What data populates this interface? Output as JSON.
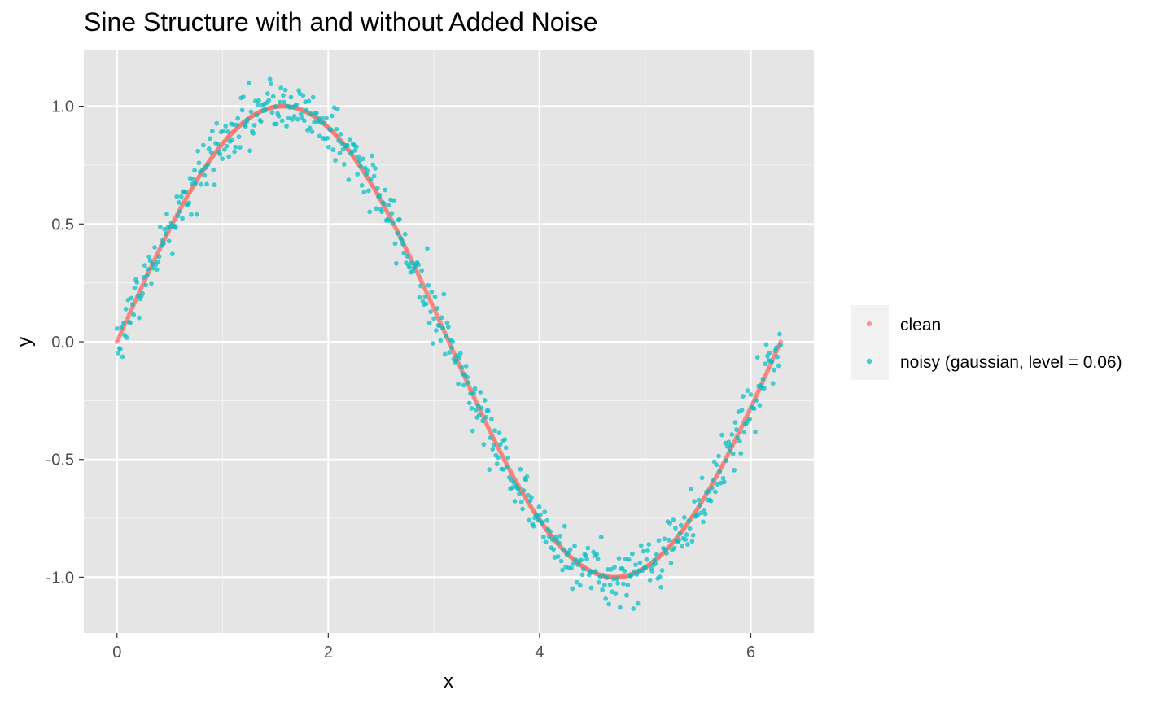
{
  "chart_data": {
    "type": "scatter",
    "title": "Sine Structure with and without Added Noise",
    "xlabel": "x",
    "ylabel": "y",
    "xlim": [
      -0.314,
      6.597
    ],
    "ylim": [
      -1.237,
      1.237
    ],
    "x_ticks": [
      0,
      2,
      4,
      6
    ],
    "x_tick_labels": [
      "0",
      "2",
      "4",
      "6"
    ],
    "y_ticks": [
      -1.0,
      -0.5,
      0.0,
      0.5,
      1.0
    ],
    "y_tick_labels": [
      "-1.0",
      "-0.5",
      "0.0",
      "0.5",
      "1.0"
    ],
    "grid": true,
    "legend_position": "right",
    "panel_background": "#e5e5e5",
    "series": [
      {
        "name": "clean",
        "color": "#F8766D",
        "function": "sin(x)",
        "x_range": [
          0,
          6.2832
        ],
        "n_points": 600
      },
      {
        "name": "noisy (gaussian, level = 0.06)",
        "color": "#00BFC4",
        "function": "sin(x) + gaussian noise",
        "noise_sd": 0.06,
        "x_range": [
          0,
          6.2832
        ],
        "n_points": 600
      }
    ]
  }
}
